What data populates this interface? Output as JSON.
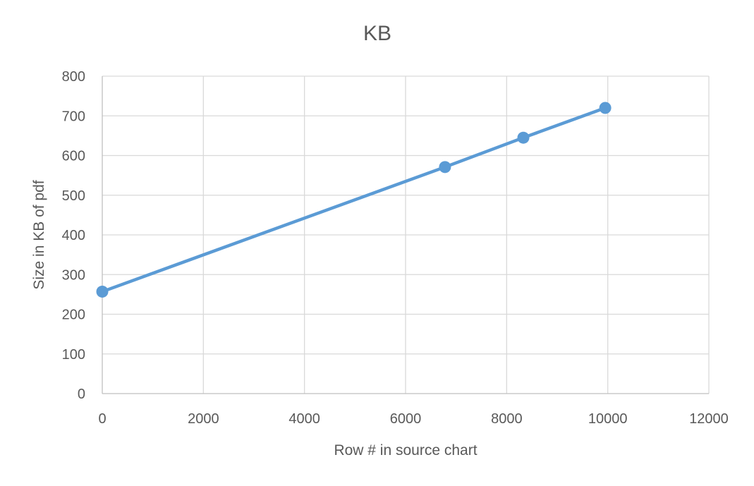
{
  "chart_data": {
    "type": "scatter",
    "title": "KB",
    "xlabel": "Row # in source chart",
    "ylabel": "Size in KB of pdf",
    "xlim": [
      0,
      12000
    ],
    "ylim": [
      0,
      800
    ],
    "xticks": [
      "0",
      "2000",
      "4000",
      "6000",
      "8000",
      "10000",
      "12000"
    ],
    "yticks": [
      "0",
      "100",
      "200",
      "300",
      "400",
      "500",
      "600",
      "700",
      "800"
    ],
    "grid": true,
    "legend": "none",
    "series": [
      {
        "color": "#5b9bd5",
        "marker": "circle",
        "connected": true,
        "x": [
          0,
          6780,
          8330,
          9950
        ],
        "y": [
          257,
          571,
          645,
          720
        ]
      }
    ]
  }
}
